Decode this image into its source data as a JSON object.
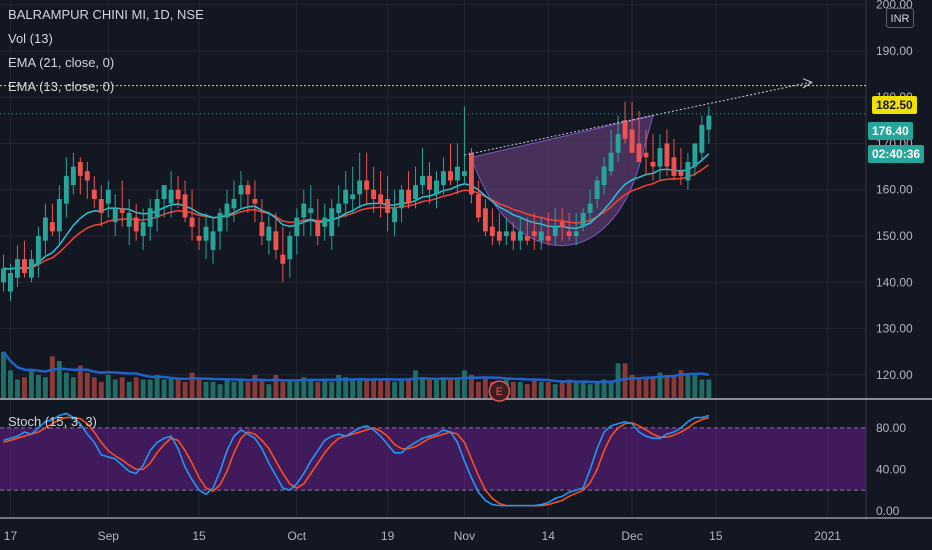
{
  "legend": {
    "symbol": "BALRAMPUR CHINI MI, 1D, NSE",
    "vol": "Vol (13)",
    "ema21": "EMA (21, close, 0)",
    "ema13": "EMA (13, close, 0)",
    "stoch": "Stoch (15, 3, 3)"
  },
  "currency_button": "INR",
  "price_tags": {
    "level": "182.50",
    "last": "176.40",
    "countdown": "02:40:36"
  },
  "colors": {
    "up": "#26a69a",
    "down": "#ef5350",
    "ema13": "#26c6da",
    "ema21": "#f44336",
    "vol_ma": "#1e63c8",
    "stoch_k": "#2196f3",
    "stoch_d": "#f4511e",
    "stoch_band": "#7b1fa2",
    "cup_fill": "#5a3a6e",
    "level_line": "#f0e000"
  },
  "chart_data": {
    "type": "candlestick",
    "price_axis": {
      "ticks": [
        120,
        130,
        140,
        150,
        160,
        170,
        180,
        190,
        200
      ],
      "tick_labels": [
        "120.00",
        "130.00",
        "140.00",
        "150.00",
        "160.00",
        "170.00",
        "180.00",
        "190.00",
        "200.00"
      ],
      "ylim": [
        115,
        201
      ]
    },
    "stoch_axis": {
      "ticks": [
        0,
        40,
        80
      ],
      "tick_labels": [
        "0.00",
        "40.00",
        "80.00"
      ],
      "ylim": [
        -5,
        105
      ],
      "band": [
        20,
        80
      ]
    },
    "x_ticks": [
      {
        "index": 1,
        "label": "17"
      },
      {
        "index": 15,
        "label": "Sep"
      },
      {
        "index": 28,
        "label": "15"
      },
      {
        "index": 42,
        "label": "Oct"
      },
      {
        "index": 55,
        "label": "19"
      },
      {
        "index": 66,
        "label": "Nov"
      },
      {
        "index": 78,
        "label": "14"
      },
      {
        "index": 90,
        "label": "Dec"
      },
      {
        "index": 102,
        "label": "15"
      },
      {
        "index": 118,
        "label": "2021"
      }
    ],
    "total_slots": 124,
    "open": [
      140,
      138,
      141,
      145,
      141,
      144,
      149,
      153,
      151,
      157,
      161,
      166,
      164,
      160,
      158,
      157,
      153,
      156,
      152,
      154,
      150,
      152,
      154,
      158,
      157,
      160,
      159,
      154,
      150,
      149,
      147,
      151,
      154,
      156,
      159,
      161,
      158,
      153,
      149,
      151,
      146,
      145,
      150,
      154,
      155,
      153,
      152,
      150,
      155,
      157,
      158,
      159,
      162,
      160,
      159,
      158,
      153,
      156,
      160,
      158,
      161,
      163,
      159,
      161,
      164,
      162,
      163,
      168,
      159,
      156,
      152,
      151,
      150,
      151,
      149,
      150,
      151,
      149,
      150,
      150,
      153,
      151,
      150,
      152,
      155,
      158,
      161,
      164,
      168,
      175,
      173,
      170,
      168,
      166,
      165,
      170,
      167,
      164,
      162,
      165,
      168,
      173
    ],
    "high": [
      146,
      144,
      148,
      149,
      147,
      152,
      157,
      157,
      161,
      167,
      168,
      167,
      166,
      163,
      161,
      162,
      159,
      162,
      158,
      157,
      156,
      158,
      160,
      161,
      164,
      163,
      162,
      160,
      154,
      155,
      154,
      156,
      160,
      162,
      164,
      162,
      162,
      158,
      155,
      155,
      152,
      151,
      156,
      160,
      161,
      158,
      157,
      158,
      161,
      164,
      165,
      168,
      168,
      165,
      164,
      163,
      160,
      161,
      164,
      165,
      169,
      166,
      164,
      167,
      170,
      170,
      178,
      169,
      162,
      158,
      156,
      155,
      154,
      153,
      154,
      154,
      155,
      154,
      155,
      156,
      156,
      155,
      155,
      156,
      160,
      163,
      167,
      173,
      176,
      179,
      179,
      177,
      173,
      172,
      172,
      173,
      171,
      169,
      168,
      170,
      176,
      178
    ],
    "low": [
      138,
      136,
      139,
      141,
      140,
      141,
      146,
      150,
      148,
      154,
      159,
      159,
      158,
      156,
      152,
      154,
      150,
      152,
      148,
      149,
      147,
      149,
      151,
      154,
      154,
      156,
      153,
      149,
      147,
      145,
      144,
      147,
      151,
      153,
      156,
      155,
      153,
      148,
      146,
      145,
      140,
      141,
      146,
      150,
      150,
      148,
      149,
      147,
      152,
      154,
      155,
      156,
      157,
      155,
      154,
      151,
      150,
      153,
      156,
      156,
      159,
      157,
      156,
      159,
      161,
      159,
      161,
      157,
      153,
      150,
      148,
      148,
      148,
      147,
      147,
      148,
      147,
      147,
      148,
      148,
      149,
      149,
      148,
      151,
      153,
      156,
      159,
      163,
      166,
      170,
      168,
      166,
      163,
      162,
      162,
      163,
      162,
      161,
      160,
      163,
      166,
      170
    ],
    "close": [
      143,
      142,
      145,
      142,
      145,
      150,
      154,
      151,
      158,
      163,
      165,
      163,
      162,
      158,
      155,
      160,
      156,
      155,
      155,
      151,
      153,
      156,
      158,
      161,
      160,
      158,
      154,
      152,
      149,
      152,
      151,
      155,
      157,
      158,
      161,
      159,
      157,
      150,
      152,
      147,
      144,
      150,
      154,
      157,
      156,
      150,
      154,
      156,
      157,
      160,
      159,
      162,
      160,
      158,
      157,
      155,
      156,
      160,
      157,
      161,
      163,
      160,
      162,
      164,
      162,
      165,
      164,
      159,
      154,
      151,
      150,
      149,
      151,
      149,
      151,
      149,
      150,
      151,
      149,
      152,
      152,
      150,
      151,
      155,
      157,
      162,
      165,
      168,
      172,
      171,
      168,
      166,
      167,
      165,
      169,
      165,
      163,
      163,
      166,
      170,
      174,
      176
    ],
    "volume": [
      100,
      60,
      40,
      45,
      60,
      50,
      45,
      90,
      80,
      55,
      45,
      70,
      55,
      45,
      35,
      50,
      40,
      45,
      35,
      45,
      40,
      40,
      50,
      40,
      45,
      40,
      35,
      55,
      40,
      35,
      35,
      30,
      40,
      35,
      40,
      35,
      50,
      40,
      30,
      50,
      35,
      40,
      35,
      45,
      40,
      35,
      40,
      35,
      50,
      45,
      40,
      40,
      40,
      40,
      40,
      40,
      35,
      40,
      40,
      60,
      45,
      40,
      40,
      45,
      40,
      40,
      60,
      50,
      35,
      45,
      35,
      35,
      40,
      35,
      35,
      30,
      40,
      35,
      35,
      30,
      35,
      40,
      35,
      35,
      30,
      35,
      40,
      35,
      75,
      75,
      50,
      40,
      45,
      45,
      55,
      50,
      50,
      60,
      50,
      50,
      40,
      40
    ],
    "vol_ylim": [
      0,
      130
    ],
    "stoch_k": [
      68,
      70,
      72,
      76,
      74,
      80,
      86,
      88,
      92,
      94,
      90,
      84,
      74,
      66,
      54,
      52,
      50,
      44,
      38,
      36,
      44,
      58,
      66,
      70,
      72,
      60,
      42,
      30,
      20,
      16,
      22,
      38,
      58,
      72,
      78,
      74,
      70,
      60,
      46,
      34,
      22,
      20,
      26,
      36,
      48,
      58,
      68,
      72,
      74,
      72,
      76,
      80,
      82,
      78,
      72,
      64,
      56,
      56,
      62,
      66,
      70,
      72,
      74,
      78,
      76,
      66,
      48,
      32,
      18,
      10,
      6,
      5,
      5,
      5,
      5,
      5,
      5,
      6,
      8,
      12,
      14,
      18,
      20,
      22,
      40,
      60,
      76,
      82,
      84,
      86,
      84,
      76,
      72,
      70,
      70,
      74,
      76,
      80,
      86,
      90,
      90,
      92
    ],
    "stoch_d": [
      66,
      68,
      70,
      72,
      74,
      76,
      80,
      84,
      88,
      90,
      90,
      89,
      84,
      76,
      66,
      58,
      53,
      49,
      44,
      40,
      40,
      46,
      56,
      64,
      70,
      68,
      58,
      46,
      32,
      22,
      19,
      25,
      38,
      56,
      70,
      76,
      74,
      68,
      60,
      48,
      36,
      26,
      22,
      26,
      36,
      46,
      56,
      64,
      70,
      72,
      74,
      76,
      78,
      80,
      77,
      72,
      64,
      60,
      60,
      62,
      66,
      70,
      72,
      74,
      76,
      74,
      66,
      50,
      34,
      20,
      12,
      7,
      5,
      5,
      5,
      5,
      5,
      5,
      6,
      8,
      10,
      14,
      17,
      20,
      27,
      40,
      58,
      72,
      80,
      84,
      85,
      82,
      78,
      74,
      71,
      71,
      73,
      76,
      80,
      85,
      88,
      90
    ]
  }
}
